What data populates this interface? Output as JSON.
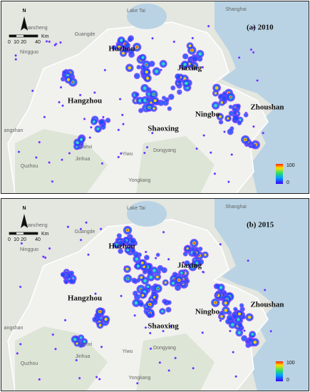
{
  "panels": [
    {
      "title": "(a) 2010",
      "places": [
        "Xuancheng",
        "Guangde",
        "Lake Tai",
        "Shanghai",
        "Ningguo",
        "angshan",
        "Lanxi",
        "Jinhua",
        "Yiwu",
        "Dongyang",
        "Quzhou",
        "Yongkang"
      ],
      "cities": [
        "Huzhou",
        "Jiaxing",
        "Hangzhou",
        "Shaoxing",
        "Ningbo",
        "Zhoushan"
      ],
      "north": "N",
      "scale": {
        "ticks": [
          0,
          10,
          20,
          40
        ],
        "unit": "Km"
      },
      "legend": {
        "max": 100,
        "min": 0
      }
    },
    {
      "title": "(b) 2015",
      "places": [
        "Xuancheng",
        "Guangde",
        "Lake Tai",
        "Shanghai",
        "Ningguo",
        "angshan",
        "Lanxi",
        "Jinhua",
        "Yiwu",
        "Dongyang",
        "Quzhou",
        "Yongkang"
      ],
      "cities": [
        "Huzhou",
        "Jiaxing",
        "Hangzhou",
        "Shaoxing",
        "Ningbo",
        "Zhoushan"
      ],
      "north": "N",
      "scale": {
        "ticks": [
          0,
          10,
          20,
          40
        ],
        "unit": "Km"
      },
      "legend": {
        "max": 100,
        "min": 0
      }
    }
  ]
}
